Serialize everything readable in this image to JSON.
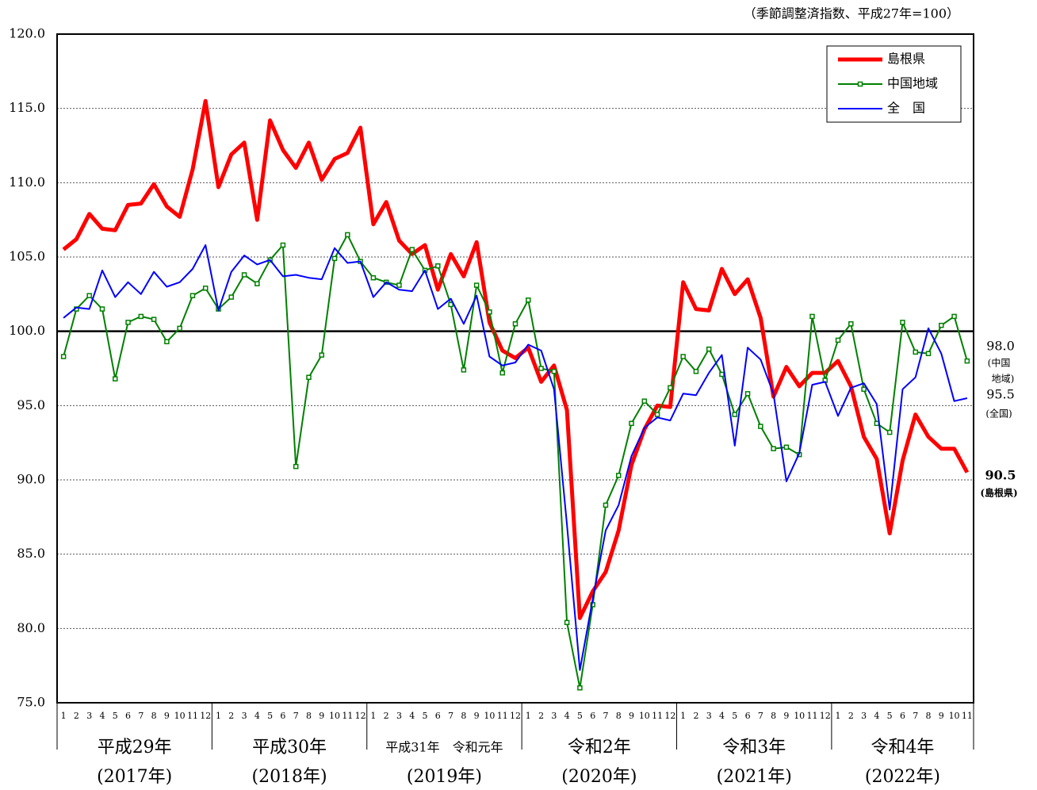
{
  "chart_data": {
    "type": "line",
    "unit_note": "（季節調整済指数、平成27年=100）",
    "categories": [
      "1",
      "2",
      "3",
      "4",
      "5",
      "6",
      "7",
      "8",
      "9",
      "10",
      "11",
      "12",
      "1",
      "2",
      "3",
      "4",
      "5",
      "6",
      "7",
      "8",
      "9",
      "10",
      "11",
      "12",
      "1",
      "2",
      "3",
      "4",
      "5",
      "6",
      "7",
      "8",
      "9",
      "10",
      "11",
      "12",
      "1",
      "2",
      "3",
      "4",
      "5",
      "6",
      "7",
      "8",
      "9",
      "10",
      "11",
      "12",
      "1",
      "2",
      "3",
      "4",
      "5",
      "6",
      "7",
      "8",
      "9",
      "10",
      "11",
      "12",
      "1",
      "2",
      "3",
      "4",
      "5",
      "6",
      "7",
      "8",
      "9",
      "10",
      "11"
    ],
    "year_groups": [
      {
        "label": "平成29年",
        "sub": "(2017年)"
      },
      {
        "label": "平成30年",
        "sub": "(2018年)"
      },
      {
        "label": "平成31年　令和元年",
        "sub": "(2019年)"
      },
      {
        "label": "令和2年",
        "sub": "(2020年)"
      },
      {
        "label": "令和3年",
        "sub": "(2021年)"
      },
      {
        "label": "令和4年",
        "sub": "(2022年)"
      }
    ],
    "series": [
      {
        "name": "島根県",
        "color": "#ff0000",
        "width": 5,
        "marker": "none",
        "values": [
          105.5,
          106.2,
          107.9,
          106.9,
          106.8,
          108.5,
          108.6,
          109.9,
          108.4,
          107.7,
          110.9,
          115.5,
          109.7,
          111.9,
          112.7,
          107.5,
          114.2,
          112.2,
          111.0,
          112.7,
          110.2,
          111.6,
          112.0,
          113.7,
          107.2,
          108.7,
          106.1,
          105.2,
          105.8,
          102.8,
          105.2,
          103.7,
          106.0,
          100.6,
          98.7,
          98.2,
          98.9,
          96.6,
          97.7,
          94.7,
          80.7,
          82.5,
          83.8,
          86.6,
          91.0,
          93.4,
          95.0,
          94.9,
          103.3,
          101.5,
          101.4,
          104.2,
          102.5,
          103.5,
          100.9,
          95.6,
          97.6,
          96.3,
          97.2,
          97.2,
          98.0,
          96.3,
          92.9,
          91.4,
          86.4,
          91.3,
          94.4,
          92.9,
          92.1,
          92.1,
          90.5
        ]
      },
      {
        "name": "中国地域",
        "color": "#008000",
        "width": 2,
        "marker": "square",
        "values": [
          98.3,
          101.5,
          102.4,
          101.5,
          96.8,
          100.6,
          101.0,
          100.8,
          99.3,
          100.2,
          102.4,
          102.9,
          101.5,
          102.3,
          103.8,
          103.2,
          104.8,
          105.8,
          90.9,
          96.9,
          98.4,
          104.9,
          106.5,
          104.7,
          103.6,
          103.3,
          103.1,
          105.5,
          104.1,
          104.4,
          101.8,
          97.4,
          103.1,
          101.3,
          97.2,
          100.5,
          102.1,
          97.5,
          97.3,
          80.4,
          76.0,
          81.6,
          88.3,
          90.3,
          93.8,
          95.3,
          94.4,
          96.2,
          98.3,
          97.3,
          98.8,
          97.1,
          94.4,
          95.8,
          93.6,
          92.1,
          92.2,
          91.7,
          101.0,
          96.7,
          99.4,
          100.5,
          96.1,
          93.8,
          93.2,
          100.6,
          98.6,
          98.5,
          100.4,
          101.0,
          98.0
        ]
      },
      {
        "name": "全　国",
        "color": "#0000ff",
        "width": 2,
        "marker": "none",
        "values": [
          100.9,
          101.6,
          101.5,
          104.1,
          102.3,
          103.3,
          102.5,
          104.0,
          103.0,
          103.3,
          104.2,
          105.8,
          101.4,
          104.0,
          105.1,
          104.5,
          104.8,
          103.7,
          103.8,
          103.6,
          103.5,
          105.6,
          104.6,
          104.7,
          102.3,
          103.3,
          102.8,
          102.7,
          104.1,
          101.5,
          102.2,
          100.5,
          102.4,
          98.3,
          97.7,
          97.9,
          99.1,
          98.7,
          96.1,
          87.0,
          77.2,
          82.0,
          86.6,
          88.3,
          91.6,
          93.5,
          94.2,
          94.0,
          95.8,
          95.7,
          97.2,
          98.4,
          92.3,
          98.9,
          98.1,
          95.8,
          89.9,
          91.8,
          96.4,
          96.6,
          94.3,
          96.2,
          96.5,
          95.1,
          88.0,
          96.1,
          96.9,
          100.2,
          98.5,
          95.3,
          95.5
        ]
      }
    ],
    "ylim": [
      75,
      120
    ],
    "yticks": [
      {
        "value": 75,
        "label": "75.0"
      },
      {
        "value": 80,
        "label": "80.0"
      },
      {
        "value": 85,
        "label": "85.0"
      },
      {
        "value": 90,
        "label": "90.0"
      },
      {
        "value": 95,
        "label": "95.0"
      },
      {
        "value": 100,
        "label": "100.0"
      },
      {
        "value": 105,
        "label": "105.0"
      },
      {
        "value": 110,
        "label": "110.0"
      },
      {
        "value": 115,
        "label": "115.0"
      },
      {
        "value": 120,
        "label": "120.0"
      }
    ],
    "reference_line": 100,
    "grid": "dotted",
    "legend": "top-right",
    "end_labels": [
      {
        "value": "98.0",
        "note": [
          "(中国",
          "地域)"
        ]
      },
      {
        "value": "95.5",
        "note": [
          "(全国)"
        ]
      },
      {
        "value": "90.5",
        "note": [
          "(島根県)"
        ]
      }
    ]
  }
}
